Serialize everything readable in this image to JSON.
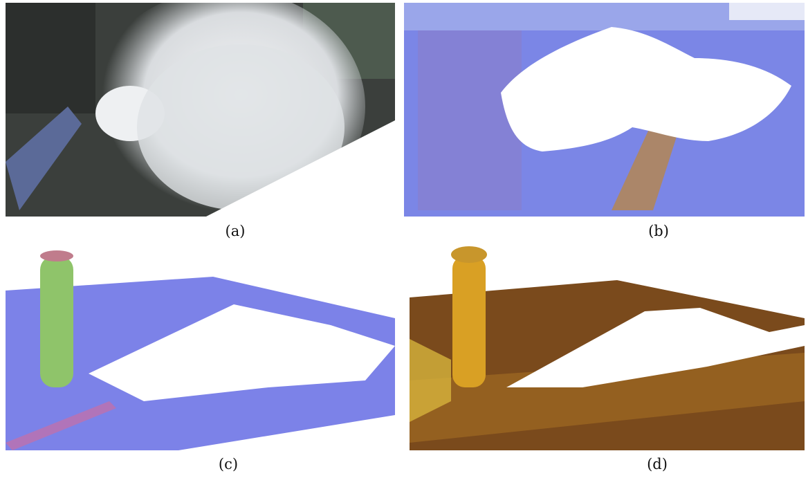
{
  "figure": {
    "panels": [
      {
        "caption": "(a)"
      },
      {
        "caption": "(b)"
      },
      {
        "caption": "(c)"
      },
      {
        "caption": "(d)"
      }
    ]
  }
}
